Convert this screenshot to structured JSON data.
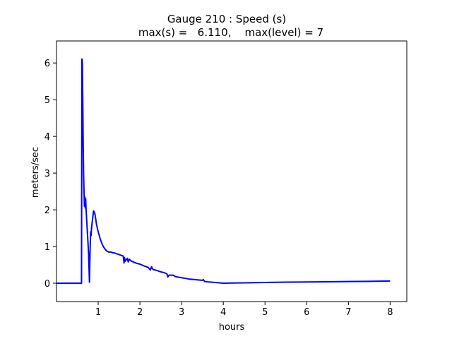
{
  "chart_data": {
    "type": "line",
    "title": "Gauge 210 : Speed (s)",
    "subtitle": "max(s) =   6.110,    max(level) = 7",
    "xlabel": "hours",
    "ylabel": "meters/sec",
    "xlim": [
      0.0,
      8.4
    ],
    "ylim": [
      -0.5,
      6.6
    ],
    "grid": false,
    "x_ticks": [
      1,
      2,
      3,
      4,
      5,
      6,
      7,
      8
    ],
    "x_tick_labels": [
      "1",
      "2",
      "3",
      "4",
      "5",
      "6",
      "7",
      "8"
    ],
    "y_ticks": [
      0,
      1,
      2,
      3,
      4,
      5,
      6
    ],
    "y_tick_labels": [
      "0",
      "1",
      "2",
      "3",
      "4",
      "5",
      "6"
    ],
    "series": [
      {
        "color": "#0000ff",
        "x": [
          0.0,
          0.6,
          0.61,
          0.62,
          0.63,
          0.64,
          0.65,
          0.66,
          0.67,
          0.68,
          0.69,
          0.7,
          0.71,
          0.73,
          0.75,
          0.77,
          0.79,
          0.8,
          0.81,
          0.82,
          0.83,
          0.84,
          0.85,
          0.87,
          0.89,
          0.9,
          0.92,
          0.94,
          0.96,
          0.98,
          1.0,
          1.05,
          1.1,
          1.15,
          1.2,
          1.25,
          1.3,
          1.35,
          1.4,
          1.45,
          1.5,
          1.55,
          1.6,
          1.62,
          1.63,
          1.65,
          1.7,
          1.72,
          1.75,
          1.8,
          1.9,
          2.0,
          2.1,
          2.2,
          2.25,
          2.28,
          2.3,
          2.32,
          2.4,
          2.5,
          2.6,
          2.65,
          2.67,
          2.7,
          2.8,
          2.85,
          2.9,
          3.0,
          3.2,
          3.4,
          3.5,
          3.52,
          3.55,
          3.6,
          3.8,
          4.0,
          4.2,
          4.5,
          5.0,
          5.5,
          6.0,
          6.5,
          7.0,
          7.5,
          8.0
        ],
        "y": [
          0.0,
          0.0,
          6.11,
          6.05,
          5.0,
          3.8,
          3.0,
          2.5,
          2.1,
          2.35,
          2.05,
          2.3,
          2.0,
          1.6,
          1.2,
          0.8,
          0.03,
          0.6,
          1.1,
          1.4,
          1.3,
          1.5,
          1.6,
          1.8,
          1.97,
          1.95,
          1.9,
          1.75,
          1.6,
          1.5,
          1.4,
          1.2,
          1.05,
          0.95,
          0.88,
          0.85,
          0.85,
          0.83,
          0.82,
          0.8,
          0.78,
          0.76,
          0.74,
          0.55,
          0.7,
          0.6,
          0.68,
          0.58,
          0.65,
          0.6,
          0.55,
          0.52,
          0.47,
          0.43,
          0.36,
          0.45,
          0.4,
          0.37,
          0.35,
          0.31,
          0.28,
          0.25,
          0.17,
          0.22,
          0.22,
          0.18,
          0.17,
          0.15,
          0.11,
          0.09,
          0.08,
          0.1,
          0.05,
          0.04,
          0.02,
          0.0,
          0.005,
          0.01,
          0.02,
          0.03,
          0.035,
          0.04,
          0.045,
          0.05,
          0.06
        ]
      }
    ]
  }
}
